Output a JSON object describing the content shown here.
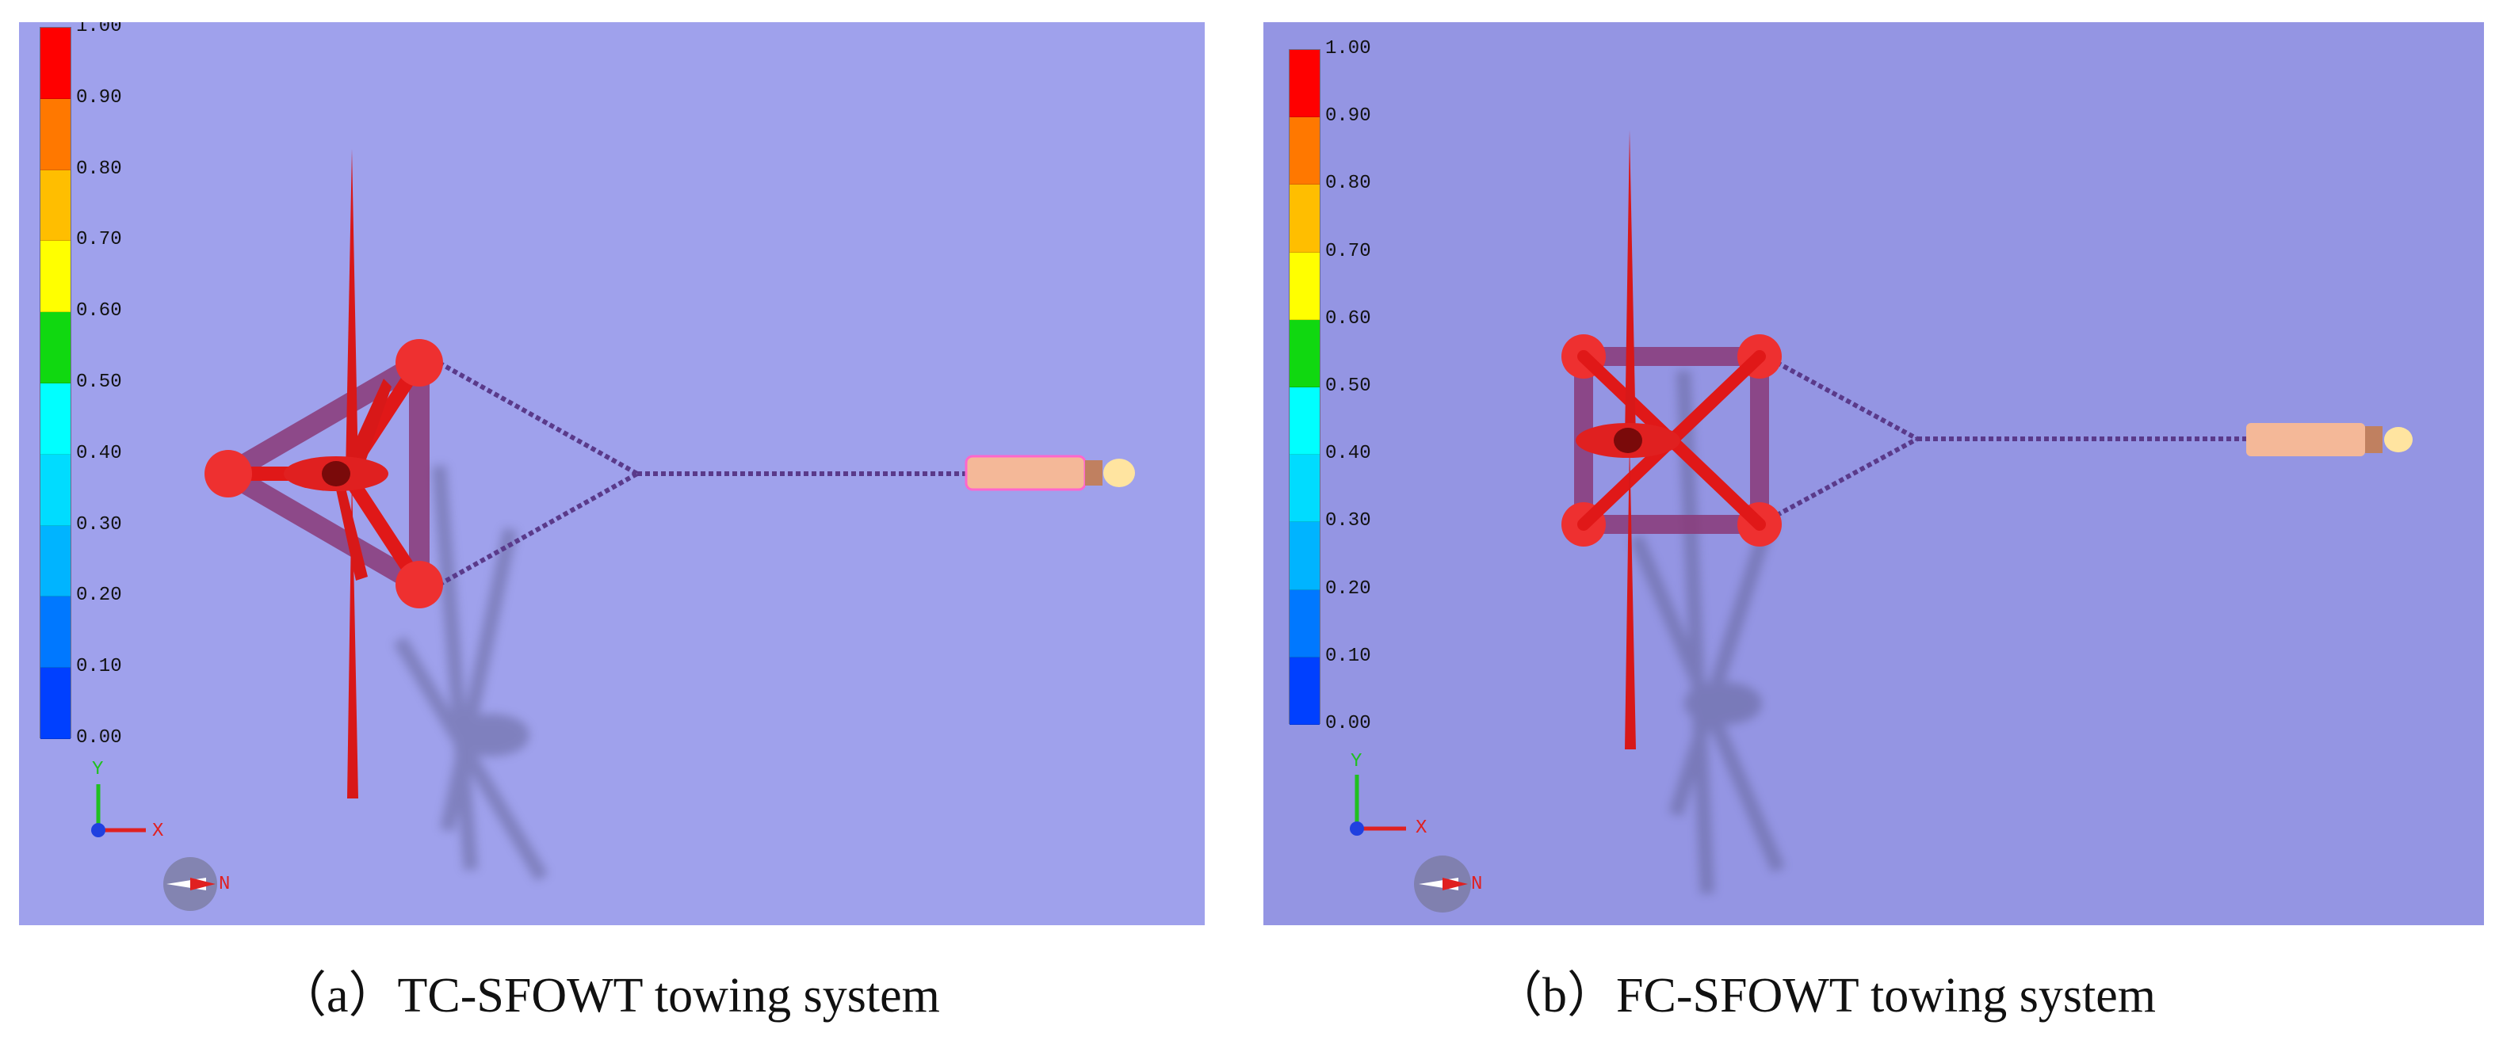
{
  "panels": [
    {
      "id": "a",
      "caption": "（a）TC-SFOWT towing system",
      "colorbar_ticks": [
        "1.00",
        "0.90",
        "0.80",
        "0.70",
        "0.60",
        "0.50",
        "0.40",
        "0.30",
        "0.20",
        "0.10",
        "0.00"
      ],
      "colorbar_colors": [
        "#ff0000",
        "#ff7800",
        "#ffbe00",
        "#ffff00",
        "#10d810",
        "#00ffff",
        "#00dcff",
        "#00b4ff",
        "#0078ff",
        "#0040ff",
        "#0000ff"
      ],
      "axis_x_label": "X",
      "axis_y_label": "Y",
      "compass_label": "N"
    },
    {
      "id": "b",
      "caption": "（b）FC-SFOWT towing system",
      "colorbar_ticks": [
        "1.00",
        "0.90",
        "0.80",
        "0.70",
        "0.60",
        "0.50",
        "0.40",
        "0.30",
        "0.20",
        "0.10",
        "0.00"
      ],
      "colorbar_colors": [
        "#ff0000",
        "#ff7800",
        "#ffbe00",
        "#ffff00",
        "#10d810",
        "#00ffff",
        "#00dcff",
        "#00b4ff",
        "#0078ff",
        "#0040ff",
        "#0000ff"
      ],
      "axis_x_label": "X",
      "axis_y_label": "Y",
      "compass_label": "N"
    }
  ],
  "colors": {
    "turbine": "#e01818",
    "platform": "#8a3a78",
    "cable": "#5a3a8a",
    "tug": "#f4b898",
    "shadow": "#5a5a88"
  }
}
